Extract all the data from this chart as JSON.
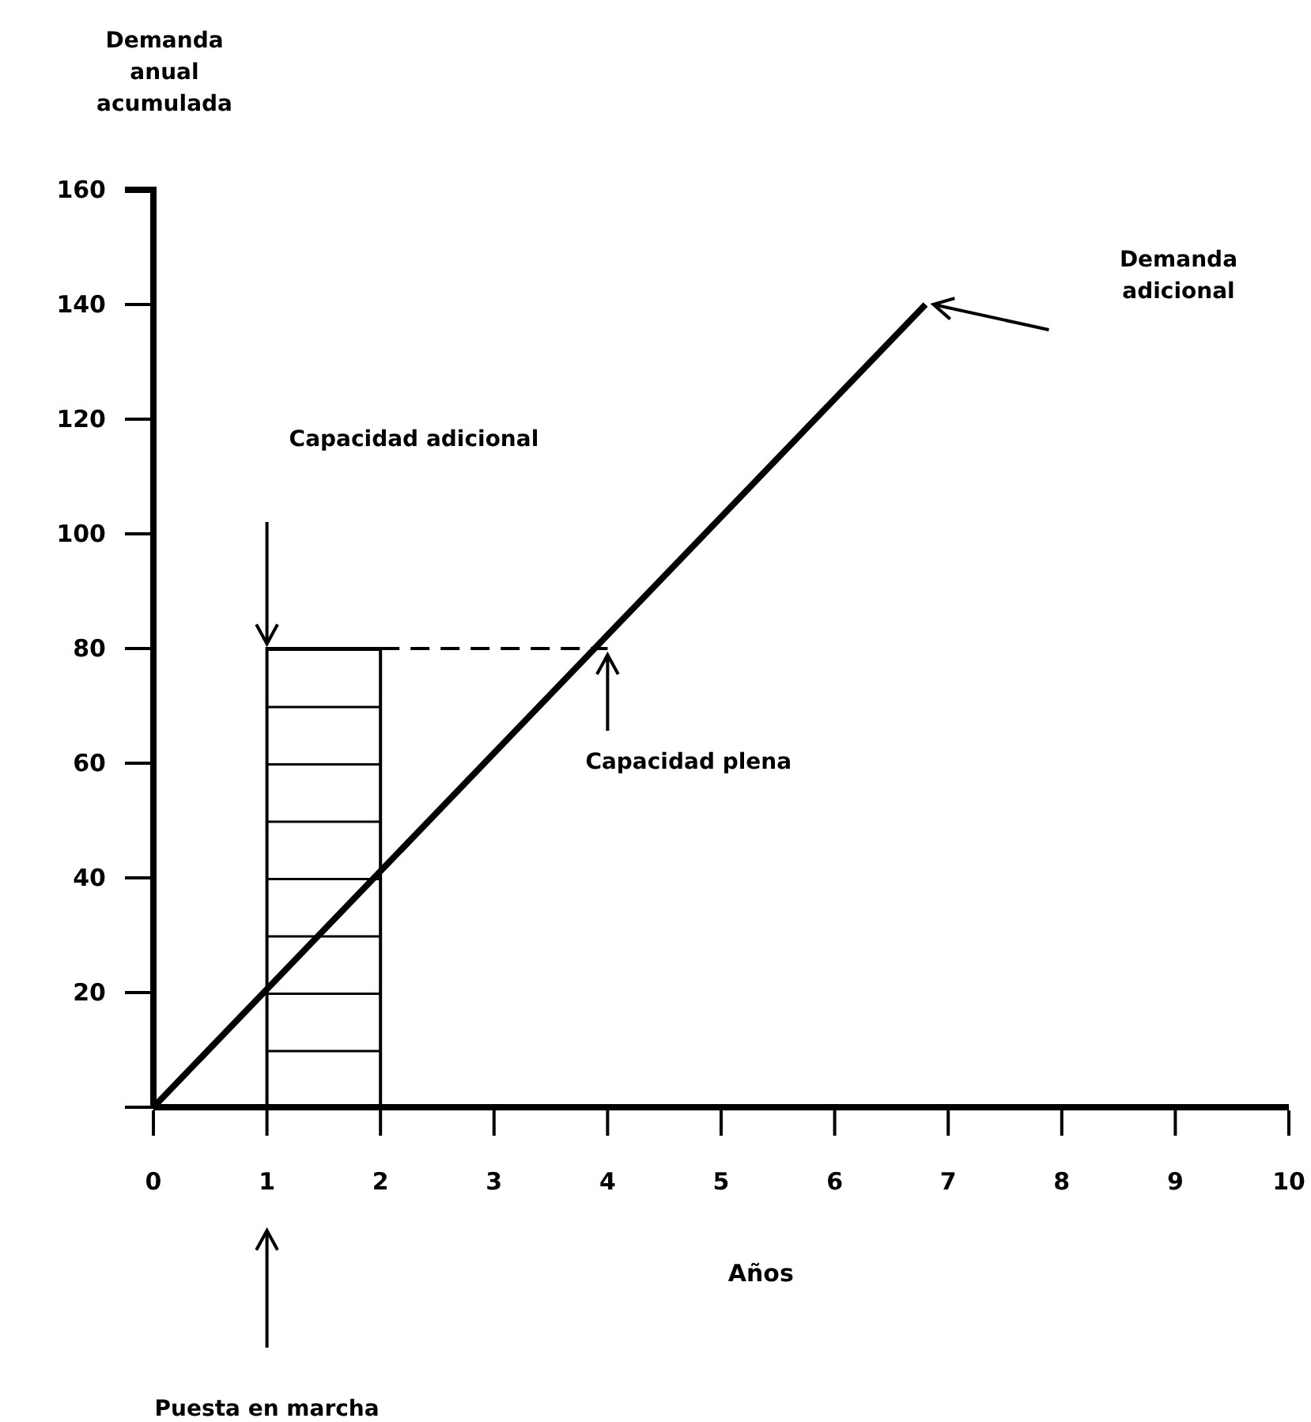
{
  "chart_data": {
    "type": "line",
    "xlabel": "Años",
    "ylabel": "Demanda anual acumulada",
    "xlim": [
      0,
      10
    ],
    "ylim": [
      0,
      160
    ],
    "xticks": [
      0,
      1,
      2,
      3,
      4,
      5,
      6,
      7,
      8,
      9,
      10
    ],
    "yticks": [
      {
        "value": 0,
        "label": null
      },
      20,
      40,
      60,
      80,
      100,
      120,
      140,
      160
    ],
    "series": [
      {
        "type": "bar",
        "x": [
          1.5
        ],
        "values": [
          80
        ],
        "color": "#000000"
      },
      {
        "x": [
          2,
          4
        ],
        "values": [
          80,
          80
        ],
        "color": "#000000",
        "line_style": "dashed"
      },
      {
        "x": [
          0,
          6.8
        ],
        "values": [
          0,
          140
        ],
        "color": "#000000",
        "line_style": "solid"
      }
    ],
    "annotations": [
      "Capacidad adicional",
      {
        "text": "Capacidad plena",
        "x": 4,
        "y": 80
      },
      "Demanda adicional",
      "Puesta en marcha"
    ],
    "grid": false,
    "marker": "none"
  }
}
